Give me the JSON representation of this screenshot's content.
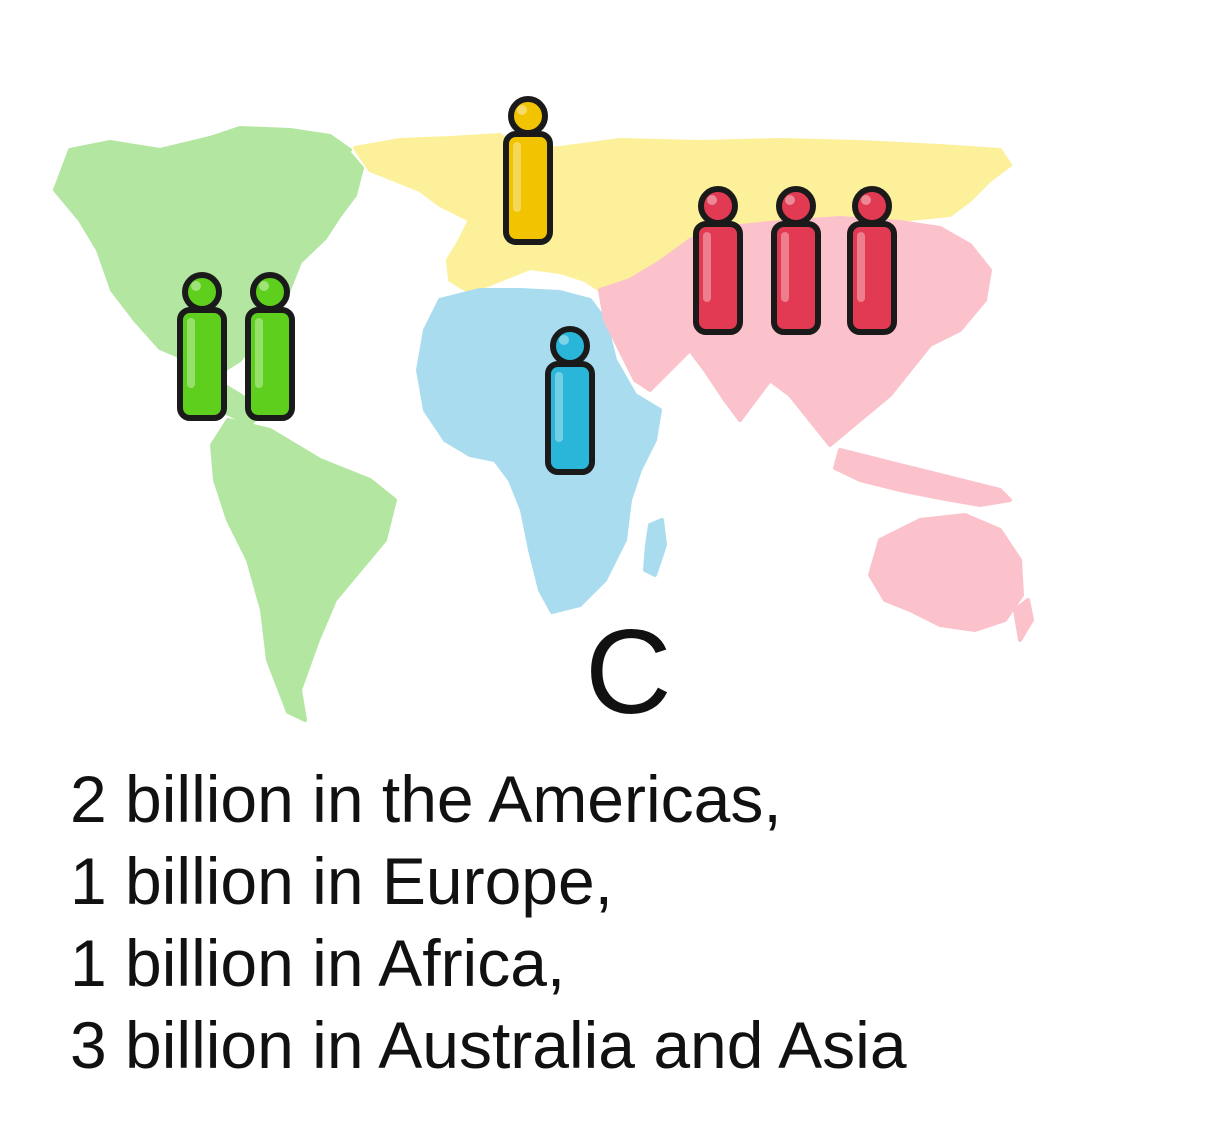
{
  "diagram": {
    "panel_label": "C",
    "regions": [
      {
        "name": "americas",
        "color": "#b3e6a0",
        "figure_color": "#5fcf1e",
        "people": 2
      },
      {
        "name": "europe",
        "color": "#fdf09a",
        "figure_color": "#f2c300",
        "people": 1
      },
      {
        "name": "africa",
        "color": "#a8dcee",
        "figure_color": "#29b6d8",
        "people": 1
      },
      {
        "name": "asia-australia",
        "color": "#fbc2cc",
        "figure_color": "#e23a52",
        "people": 3
      }
    ],
    "caption_lines": [
      "2 billion in the Americas,",
      "1 billion in Europe,",
      "1 billion in Africa,",
      "3 billion in Australia and Asia"
    ]
  }
}
